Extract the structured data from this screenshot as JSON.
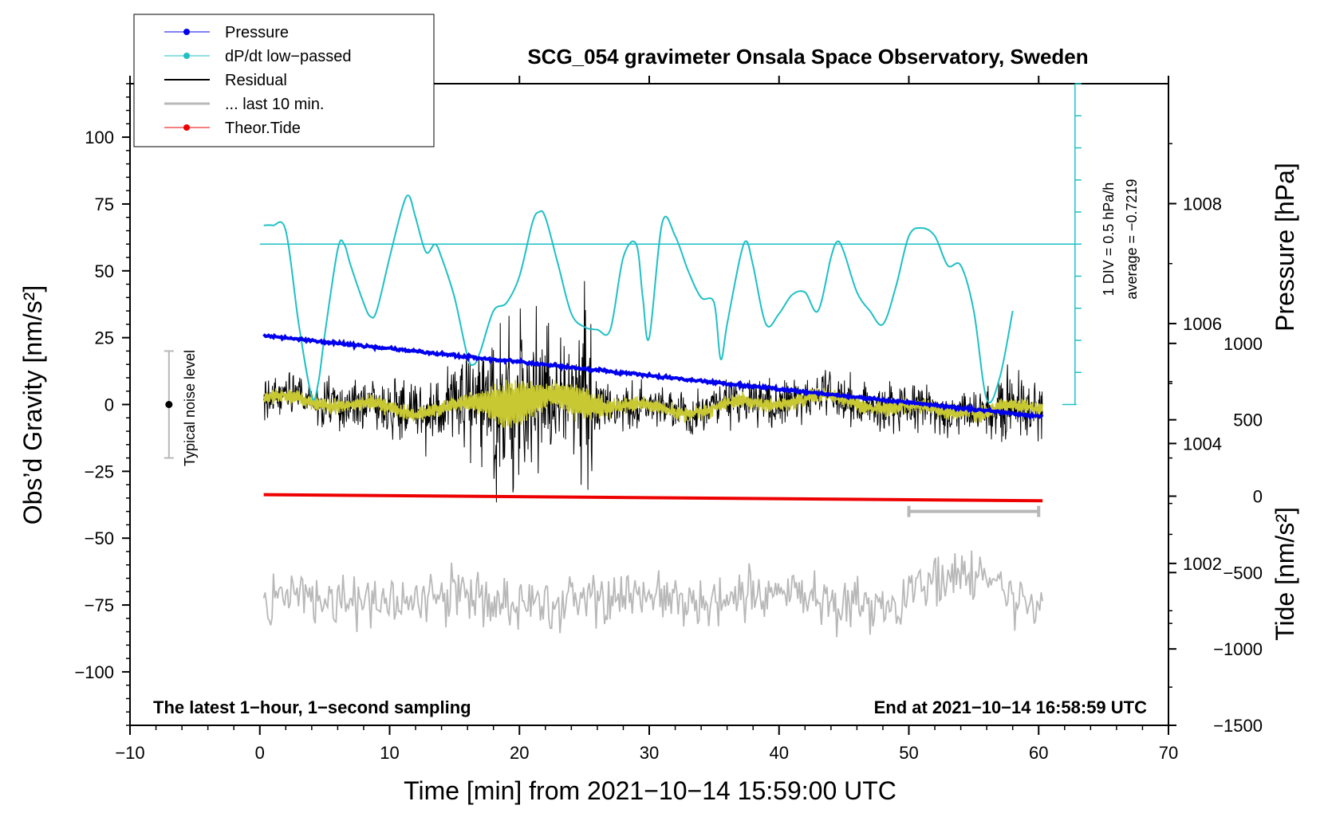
{
  "colors": {
    "pressure": "#0000ee",
    "dpdt": "#1fc0c4",
    "residual": "#000000",
    "last10": "#b8b8b8",
    "tide": "#ee0000",
    "yellow": "#c8c832"
  },
  "footer": {
    "left": "The latest 1−hour, 1−second sampling",
    "right": "End at 2021−10−14 16:58:59 UTC"
  },
  "annotations": {
    "noise_level": "Typical noise level",
    "div_label": "1 DIV = 0.5 hPa/h",
    "average_label": "average = −0.7219"
  },
  "chart_data": {
    "type": "line",
    "title": "SCG_054 gravimeter Onsala Space Observatory, Sweden",
    "xlabel": "Time [min] from 2021−10−14 15:59:00 UTC",
    "ylabel": "Obs’d Gravity [nm/s²]",
    "ylabel_pressure": "Pressure [hPa]",
    "ylabel_tide": "Tide [nm/s²]",
    "xlim": [
      -10,
      70
    ],
    "ylim": [
      -120,
      120
    ],
    "x_ticks": [
      -10,
      0,
      10,
      20,
      30,
      40,
      50,
      60,
      70
    ],
    "x_tick_labels": [
      "−10",
      "0",
      "10",
      "20",
      "30",
      "40",
      "50",
      "60",
      "70"
    ],
    "y_ticks": [
      100,
      75,
      50,
      25,
      0,
      -25,
      -50,
      -75,
      -100
    ],
    "y_tick_labels": [
      "100",
      "75",
      "50",
      "25",
      "0",
      "−25",
      "−50",
      "−75",
      "−100"
    ],
    "pressure_axis": {
      "ticks": [
        1008,
        1006,
        1004,
        1002
      ],
      "tick_labels": [
        "1008",
        "1006",
        "1004",
        "1002"
      ],
      "range": [
        999.3,
        1010
      ]
    },
    "tide_axis": {
      "ticks": [
        1000,
        500,
        0,
        -500,
        -1000,
        -1500
      ],
      "tick_labels": [
        "1000",
        "500",
        "0",
        "−500",
        "−1000",
        "−1500"
      ],
      "range": [
        -1500,
        2700
      ]
    },
    "legend": [
      {
        "label": "Pressure",
        "series": "pressure"
      },
      {
        "label": "dP/dt low−passed",
        "series": "dpdt"
      },
      {
        "label": "Residual",
        "series": "residual"
      },
      {
        "label": "... last 10 min.",
        "series": "last10"
      },
      {
        "label": "Theor.Tide",
        "series": "tide"
      }
    ],
    "series": [
      {
        "name": "Pressure",
        "x_start": 0.3,
        "x_end": 60.3,
        "y_start": 1005.8,
        "y_end": 1004.45,
        "unit": "hPa"
      },
      {
        "name": "dP/dt low-passed",
        "x": [
          0.3,
          1.0,
          2.0,
          3.0,
          4.0,
          4.5,
          5.0,
          6.0,
          6.5,
          7.0,
          8.0,
          8.5,
          9.0,
          10.0,
          11.0,
          11.5,
          12.0,
          12.8,
          13.5,
          14.0,
          15.0,
          16.0,
          16.5,
          17.0,
          18.0,
          19.0,
          20.0,
          21.0,
          21.5,
          22.0,
          23.0,
          24.0,
          25.0,
          26.0,
          27.0,
          28.0,
          29.0,
          29.5,
          30.0,
          31.0,
          32.0,
          33.0,
          34.0,
          35.0,
          35.5,
          36.0,
          37.0,
          37.5,
          38.0,
          39.0,
          40.0,
          41.0,
          42.0,
          43.0,
          44.0,
          44.5,
          45.0,
          46.0,
          47.0,
          48.0,
          49.0,
          50.0,
          51.0,
          52.0,
          53.0,
          54.0,
          55.0,
          56.0,
          57.0,
          58.0
        ],
        "y": [
          67,
          67,
          65,
          30,
          3,
          8,
          26,
          58,
          60,
          52,
          38,
          33,
          35,
          55,
          74,
          78,
          70,
          57,
          60,
          55,
          40,
          18,
          15,
          20,
          35,
          38,
          48,
          68,
          72,
          70,
          52,
          34,
          29,
          28,
          28,
          55,
          60,
          40,
          25,
          68,
          63,
          50,
          40,
          38,
          17,
          30,
          55,
          61,
          52,
          30,
          34,
          41,
          42,
          35,
          55,
          61,
          57,
          42,
          35,
          30,
          44,
          63,
          66,
          63,
          52,
          52,
          35,
          2,
          10,
          35
        ],
        "unit": "nm/s² equivalent"
      },
      {
        "name": "Residual",
        "x_start": 0.3,
        "x_end": 60.3,
        "baseline": 0,
        "burst_center": 19.5,
        "burst_peak": 52,
        "burst_trough": -43
      },
      {
        "name": "last 10 min",
        "x_start": 0.3,
        "x_end": 60.3,
        "mean": -73
      },
      {
        "name": "Theor.Tide",
        "x_start": 0.3,
        "x_end": 60.3,
        "y_start": 10,
        "y_end": -30,
        "unit": "nm/s²"
      }
    ],
    "marker_bar_x": [
      50,
      60
    ]
  }
}
